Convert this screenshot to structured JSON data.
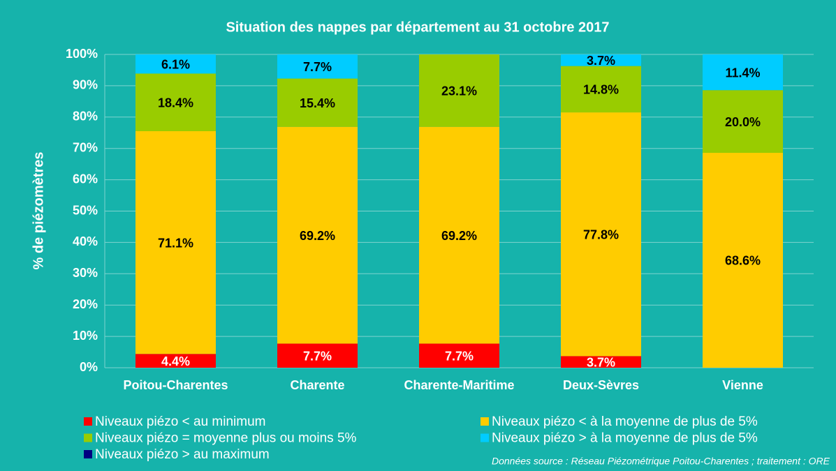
{
  "chart_data": {
    "type": "stacked_bar",
    "title": "Situation des nappes par département au 31 octobre 2017",
    "y_label": "% de piézomètres",
    "source": "Données source : Réseau Piézométrique Poitou-Charentes ; traitement : ORE",
    "categories": [
      "Poitou-Charentes",
      "Charente",
      "Charente-Maritime",
      "Deux-Sèvres",
      "Vienne"
    ],
    "series": [
      {
        "name": "Niveaux piézo < au minimum",
        "color": "#ff0000",
        "label_color": "#ffffff",
        "values": [
          4.4,
          7.7,
          7.7,
          3.7,
          0
        ],
        "value_labels": [
          "4.4%",
          "7.7%",
          "7.7%",
          "3.7%",
          null
        ]
      },
      {
        "name": "Niveaux piézo < à la moyenne de plus de 5%",
        "color": "#ffcc00",
        "label_color": "#000000",
        "values": [
          71.1,
          69.2,
          69.2,
          77.8,
          68.6
        ],
        "value_labels": [
          "71.1%",
          "69.2%",
          "69.2%",
          "77.8%",
          "68.6%"
        ]
      },
      {
        "name": "Niveaux piézo = moyenne plus ou moins 5%",
        "color": "#99cc00",
        "label_color": "#000000",
        "values": [
          18.4,
          15.4,
          23.1,
          14.8,
          20.0
        ],
        "value_labels": [
          "18.4%",
          "15.4%",
          "23.1%",
          "14.8%",
          "20.0%"
        ]
      },
      {
        "name": "Niveaux piézo > à la moyenne de plus de 5%",
        "color": "#00ccff",
        "label_color": "#000000",
        "values": [
          6.1,
          7.7,
          0,
          3.7,
          11.4
        ],
        "value_labels": [
          "6.1%",
          "7.7%",
          null,
          "3.7%",
          "11.4%"
        ]
      },
      {
        "name": "Niveaux piézo > au maximum",
        "color": "#000080",
        "label_color": "#ffffff",
        "values": [
          0,
          0,
          0,
          0,
          0
        ]
      }
    ],
    "ylim": [
      0,
      100
    ],
    "yticks": [
      {
        "value": 0,
        "label": "0%"
      },
      {
        "value": 10,
        "label": "10%"
      },
      {
        "value": 20,
        "label": "20%"
      },
      {
        "value": 30,
        "label": "30%"
      },
      {
        "value": 40,
        "label": "40%"
      },
      {
        "value": 50,
        "label": "50%"
      },
      {
        "value": 60,
        "label": "60%"
      },
      {
        "value": 70,
        "label": "70%"
      },
      {
        "value": 80,
        "label": "80%"
      },
      {
        "value": 90,
        "label": "90%"
      },
      {
        "value": 100,
        "label": "100%"
      }
    ],
    "grid": true
  }
}
